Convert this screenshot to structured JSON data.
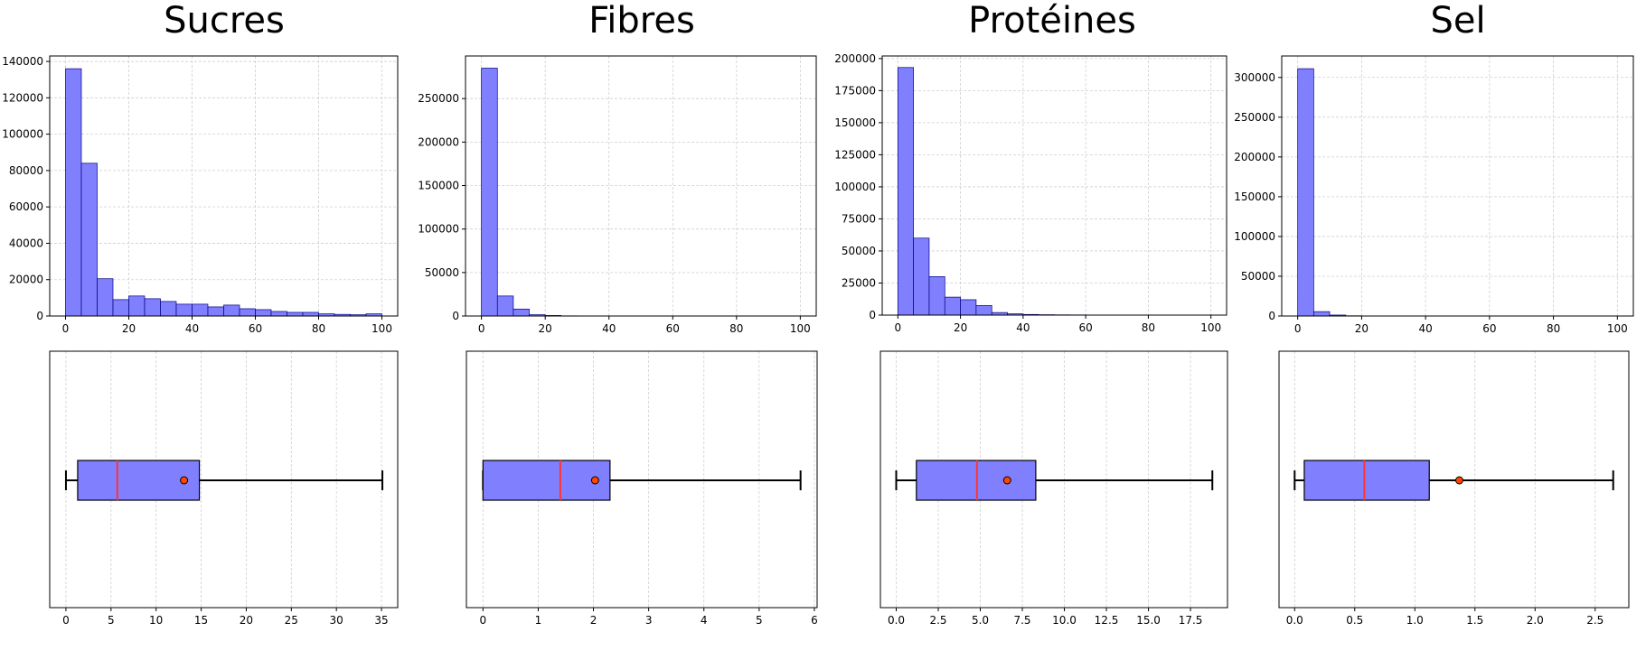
{
  "colors": {
    "fill": "#8080ff",
    "edge": "#000080",
    "grid": "#cfcfcf",
    "median": "#ff3333",
    "mean_marker": "#ff4500"
  },
  "chart_data": [
    {
      "type": "histogram",
      "title": "Sucres",
      "x_range": [
        0,
        100
      ],
      "xlim": [
        -5,
        105
      ],
      "ylim": [
        0,
        143000
      ],
      "x_ticks": [
        0,
        20,
        40,
        60,
        80,
        100
      ],
      "y_ticks": [
        0,
        20000,
        40000,
        60000,
        80000,
        100000,
        120000,
        140000
      ],
      "grid": true,
      "bin_edges": [
        0,
        5,
        10,
        15,
        20,
        25,
        30,
        35,
        40,
        45,
        50,
        55,
        60,
        65,
        70,
        75,
        80,
        85,
        90,
        95,
        100
      ],
      "counts": [
        136000,
        84000,
        20500,
        9000,
        11000,
        9500,
        8000,
        6500,
        6500,
        5000,
        6000,
        4000,
        3500,
        2500,
        2000,
        2000,
        1200,
        900,
        700,
        1200
      ]
    },
    {
      "type": "histogram",
      "title": "Fibres",
      "x_range": [
        0,
        100
      ],
      "xlim": [
        -5,
        105
      ],
      "ylim": [
        0,
        299000
      ],
      "x_ticks": [
        0,
        20,
        40,
        60,
        80,
        100
      ],
      "y_ticks": [
        0,
        50000,
        100000,
        150000,
        200000,
        250000
      ],
      "grid": true,
      "bin_edges": [
        0,
        5,
        10,
        15,
        20,
        25,
        30,
        35,
        40,
        45,
        50,
        55,
        60,
        65,
        70,
        75,
        80,
        85,
        90,
        95,
        100
      ],
      "counts": [
        285000,
        23000,
        8000,
        1500,
        600,
        200,
        100,
        80,
        50,
        40,
        30,
        20,
        20,
        10,
        10,
        10,
        10,
        10,
        10,
        10
      ]
    },
    {
      "type": "histogram",
      "title": "Protéines",
      "x_range": [
        0,
        100
      ],
      "xlim": [
        -5,
        105
      ],
      "ylim": [
        0,
        202000
      ],
      "x_ticks": [
        0,
        20,
        40,
        60,
        80,
        100
      ],
      "y_ticks": [
        0,
        25000,
        50000,
        75000,
        100000,
        125000,
        150000,
        175000,
        200000
      ],
      "grid": true,
      "bin_edges": [
        0,
        5,
        10,
        15,
        20,
        25,
        30,
        35,
        40,
        45,
        50,
        55,
        60,
        65,
        70,
        75,
        80,
        85,
        90,
        95,
        100
      ],
      "counts": [
        193000,
        60000,
        30000,
        14000,
        12000,
        7500,
        2000,
        1000,
        500,
        300,
        200,
        150,
        100,
        80,
        60,
        50,
        40,
        30,
        20,
        20
      ]
    },
    {
      "type": "histogram",
      "title": "Sel",
      "x_range": [
        0,
        100
      ],
      "xlim": [
        -5,
        105
      ],
      "ylim": [
        0,
        327000
      ],
      "x_ticks": [
        0,
        20,
        40,
        60,
        80,
        100
      ],
      "y_ticks": [
        0,
        50000,
        100000,
        150000,
        200000,
        250000,
        300000
      ],
      "grid": true,
      "bin_edges": [
        0,
        5,
        10,
        15,
        20,
        25,
        30,
        35,
        40,
        45,
        50,
        55,
        60,
        65,
        70,
        75,
        80,
        85,
        90,
        95,
        100
      ],
      "counts": [
        311000,
        5500,
        1200,
        300,
        100,
        50,
        30,
        20,
        10,
        10,
        10,
        10,
        10,
        10,
        10,
        10,
        10,
        10,
        10,
        10
      ]
    },
    {
      "type": "boxplot",
      "orientation": "horizontal",
      "xlim": [
        -1.8,
        36.8
      ],
      "x_ticks": [
        0,
        5,
        10,
        15,
        20,
        25,
        30,
        35
      ],
      "grid": true,
      "whisker_low": 0,
      "q1": 1.3,
      "median": 5.7,
      "q3": 14.8,
      "whisker_high": 35.1,
      "mean": 13.1
    },
    {
      "type": "boxplot",
      "orientation": "horizontal",
      "xlim": [
        -0.3,
        6.05
      ],
      "x_ticks": [
        0,
        1,
        2,
        3,
        4,
        5,
        6
      ],
      "grid": true,
      "whisker_low": 0,
      "q1": 0,
      "median": 1.4,
      "q3": 2.3,
      "whisker_high": 5.75,
      "mean": 2.03
    },
    {
      "type": "boxplot",
      "orientation": "horizontal",
      "xlim": [
        -0.94,
        19.7
      ],
      "x_ticks": [
        0.0,
        2.5,
        5.0,
        7.5,
        10.0,
        12.5,
        15.0,
        17.5
      ],
      "x_tick_labels": [
        "0.0",
        "2.5",
        "5.0",
        "7.5",
        "10.0",
        "12.5",
        "15.0",
        "17.5"
      ],
      "grid": true,
      "whisker_low": 0,
      "q1": 1.2,
      "median": 4.8,
      "q3": 8.3,
      "whisker_high": 18.8,
      "mean": 6.6
    },
    {
      "type": "boxplot",
      "orientation": "horizontal",
      "xlim": [
        -0.13,
        2.78
      ],
      "x_ticks": [
        0.0,
        0.5,
        1.0,
        1.5,
        2.0,
        2.5
      ],
      "x_tick_labels": [
        "0.0",
        "0.5",
        "1.0",
        "1.5",
        "2.0",
        "2.5"
      ],
      "grid": true,
      "whisker_low": 0,
      "q1": 0.08,
      "median": 0.58,
      "q3": 1.12,
      "whisker_high": 2.65,
      "mean": 1.37
    }
  ]
}
